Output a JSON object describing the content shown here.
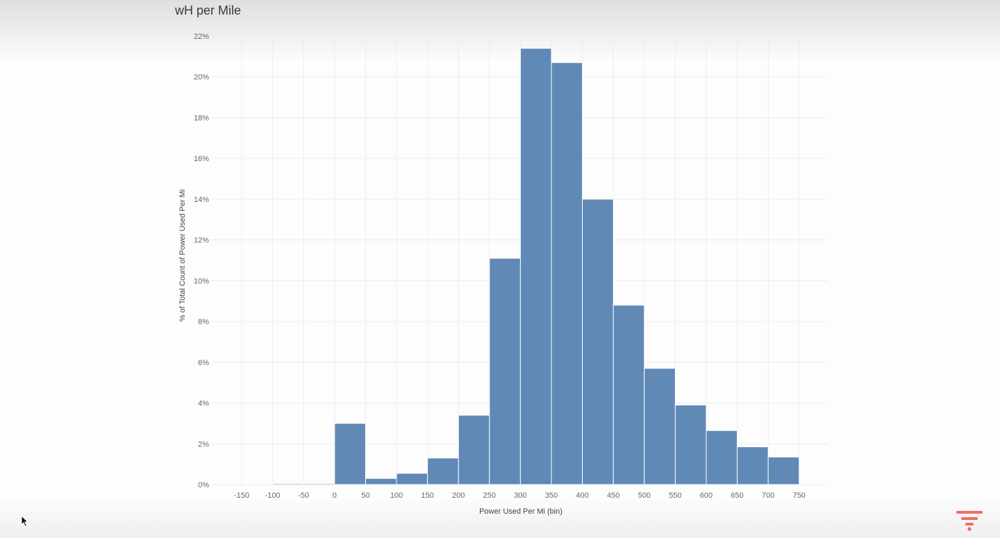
{
  "sheet": {
    "title": "wH per Mile"
  },
  "icons": {
    "cursor": "mouse-pointer-icon",
    "brand": "brand-logo-icon"
  },
  "colors": {
    "bar_fill": "#6189b5",
    "bar_stroke": "#ffffff",
    "grid": "#ececec",
    "brand": "#f26b66"
  },
  "chart_data": {
    "type": "bar",
    "title": "",
    "xlabel": "Power Used Per Mi (bin)",
    "ylabel": "% of Total Count of Power Used Per Mi",
    "bin_width": 50,
    "xlim": [
      -150,
      750
    ],
    "ylim": [
      0,
      22
    ],
    "x_ticks": [
      -150,
      -100,
      -50,
      0,
      50,
      100,
      150,
      200,
      250,
      300,
      350,
      400,
      450,
      500,
      550,
      600,
      650,
      700,
      750
    ],
    "y_ticks": [
      0,
      2,
      4,
      6,
      8,
      10,
      12,
      14,
      16,
      18,
      20,
      22
    ],
    "y_tick_labels": [
      "0%",
      "2%",
      "4%",
      "6%",
      "8%",
      "10%",
      "12%",
      "14%",
      "16%",
      "18%",
      "20%",
      "22%"
    ],
    "bins": [
      -100,
      -50,
      0,
      50,
      100,
      150,
      200,
      250,
      300,
      350,
      400,
      450,
      500,
      550,
      600,
      650,
      700
    ],
    "values": [
      0.05,
      0.05,
      3.0,
      0.3,
      0.55,
      1.3,
      3.4,
      11.1,
      21.4,
      20.7,
      14.0,
      8.8,
      5.7,
      3.9,
      2.65,
      1.85,
      1.35
    ],
    "grid": true,
    "legend": "none"
  }
}
